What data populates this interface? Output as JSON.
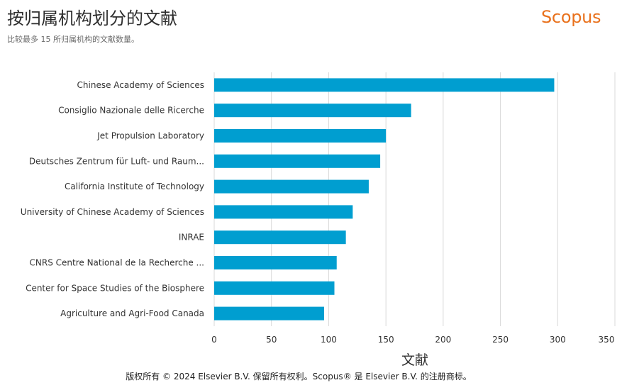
{
  "header": {
    "title": "按归属机构划分的文献",
    "subtitle": "比较最多 15 所归属机构的文献数量。",
    "logo_text": "Scopus"
  },
  "footer": {
    "copyright": "版权所有 © 2024 Elsevier B.V. 保留所有权利。Scopus® 是 Elsevier B.V. 的注册商标。"
  },
  "colors": {
    "bar": "#009ed0",
    "grid": "#d9d9d9",
    "logo": "#e9711c"
  },
  "chart_data": {
    "type": "bar",
    "orientation": "horizontal",
    "title": "",
    "xlabel": "文献",
    "ylabel": "",
    "xlim": [
      0,
      350
    ],
    "xticks": [
      0,
      50,
      100,
      150,
      200,
      250,
      300,
      350
    ],
    "grid": true,
    "categories": [
      "Chinese Academy of Sciences",
      "Consiglio Nazionale delle Ricerche",
      "Jet Propulsion Laboratory",
      "Deutsches Zentrum für Luft- und Raum...",
      "California Institute of Technology",
      "University of Chinese Academy of Sciences",
      "INRAE",
      "CNRS Centre National de la Recherche ...",
      "Center for Space Studies of the Biosphere",
      "Agriculture and Agri-Food Canada"
    ],
    "values": [
      297,
      172,
      150,
      145,
      135,
      121,
      115,
      107,
      105,
      96
    ]
  }
}
